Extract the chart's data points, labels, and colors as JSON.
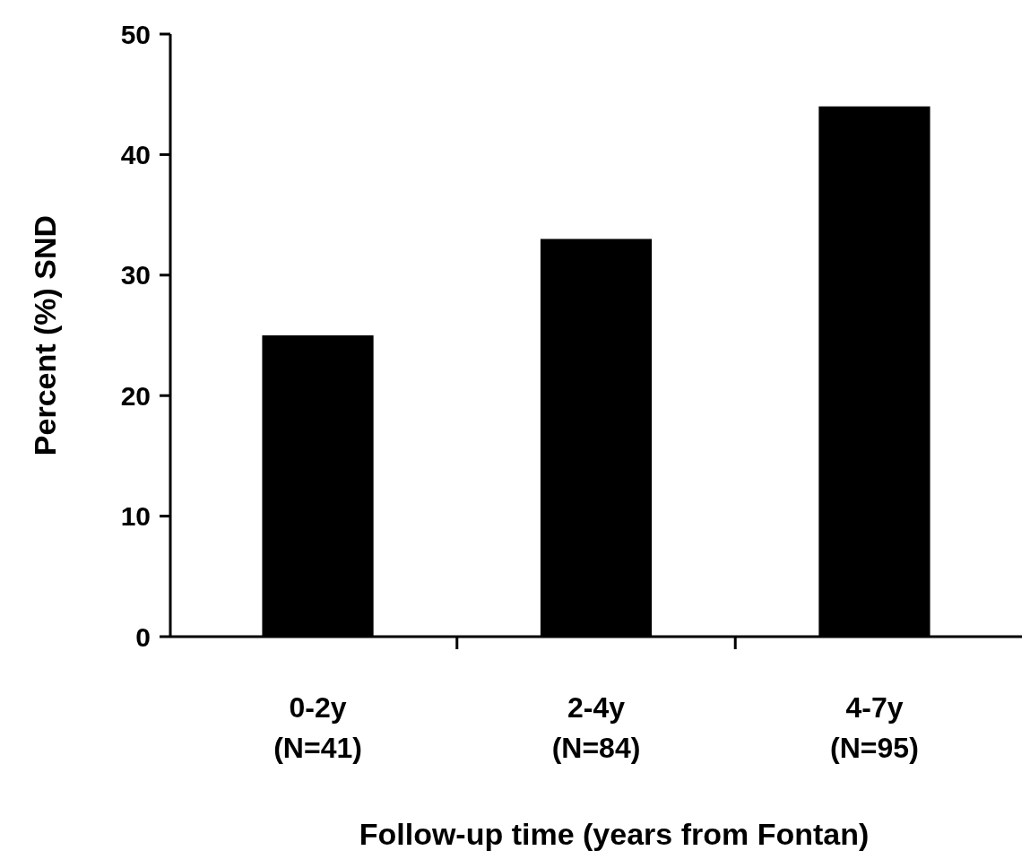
{
  "chart_data": {
    "type": "bar",
    "xlabel": "Follow-up time (years from Fontan)",
    "ylabel": "Percent (%) SND",
    "categories": [
      "0-2y\n(N=41)",
      "2-4y\n(N=84)",
      "4-7y\n(N=95)"
    ],
    "values": [
      25,
      33,
      44
    ],
    "color": "#000000",
    "ylim": [
      0,
      50
    ],
    "yticks": [
      0,
      10,
      20,
      30,
      40,
      50
    ],
    "grid": false
  }
}
